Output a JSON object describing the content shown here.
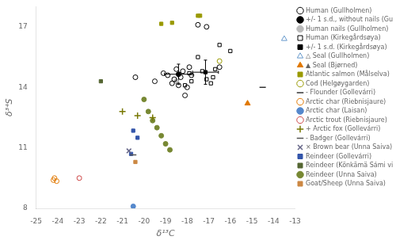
{
  "chart_data": {
    "type": "scatter",
    "xlabel": "δ¹³C",
    "ylabel": "δ³⁴S",
    "xlim": [
      -25,
      -13
    ],
    "ylim": [
      8,
      18
    ],
    "xticks": [
      -25,
      -24,
      -23,
      -22,
      -21,
      -20,
      -19,
      -18,
      -17,
      -16,
      -15,
      -14,
      -13
    ],
    "yticks": [
      8,
      11,
      14,
      17
    ],
    "grid": false,
    "legend": "right",
    "series": [
      {
        "name": "Human (Gullholmen)",
        "color": "black",
        "marker": "circle_open",
        "x": [
          -19.5,
          -19.1,
          -18.9,
          -18.7,
          -18.6,
          -18.5,
          -18.4,
          -18.3,
          -18.2,
          -18.1,
          -18.0,
          -17.9,
          -17.8,
          -17.5,
          -17.1,
          -16.5,
          -20.4
        ],
        "y": [
          14.3,
          14.7,
          14.6,
          14.2,
          14.4,
          14.9,
          14.1,
          14.5,
          14.8,
          13.6,
          14.0,
          15.0,
          14.6,
          17.1,
          17.0,
          15.0,
          14.5
        ]
      },
      {
        "name": "+/- 1 s.d., without nails (Gullholmen)",
        "color": "black",
        "marker": "circle",
        "x": [
          -18.4
        ],
        "y": [
          14.65
        ],
        "xerr": 0.65,
        "yerr": 0.5
      },
      {
        "name": "Human nails (Gullholmen)",
        "color": "#bbbbbb",
        "marker": "circle",
        "x": [
          -18.5
        ],
        "y": [
          14.3
        ]
      },
      {
        "name": "Human (Kirkegårdsøya)",
        "color": "black",
        "marker": "square_open",
        "x": [
          -17.5,
          -17.3,
          -17.1,
          -16.9,
          -16.8,
          -16.7,
          -16.5,
          -17.8,
          -17.9,
          -16.0,
          -18.1
        ],
        "y": [
          15.5,
          14.8,
          14.4,
          14.2,
          14.5,
          14.9,
          16.1,
          14.3,
          14.7,
          15.8,
          14.1
        ]
      },
      {
        "name": "+/- 1 s.d. (Kirkegårdsøya)",
        "color": "black",
        "marker": "square",
        "x": [
          -17.15
        ],
        "y": [
          14.75
        ],
        "xerr": 0.6,
        "yerr": 0.6
      },
      {
        "name": "△ Seal (Gullholmen)",
        "color": "#6699cc",
        "marker": "triangle_open",
        "x": [
          -13.5
        ],
        "y": [
          16.4
        ]
      },
      {
        "name": "▲ Seal (Bjørned)",
        "color": "#e07800",
        "marker": "triangle",
        "x": [
          -15.2
        ],
        "y": [
          13.2
        ]
      },
      {
        "name": "Atlantic salmon (Målselva)",
        "color": "#999900",
        "marker": "square",
        "x": [
          -19.2,
          -18.7,
          -17.5,
          -17.4
        ],
        "y": [
          17.15,
          17.2,
          17.55,
          17.55
        ]
      },
      {
        "name": "Cod (Helgøygarden)",
        "color": "#999900",
        "marker": "circle_open",
        "x": [
          -16.5
        ],
        "y": [
          15.3
        ]
      },
      {
        "name": "- Flounder (Gollevárri)",
        "color": "#333333",
        "marker": "hline",
        "x": [
          -14.5
        ],
        "y": [
          14.0
        ]
      },
      {
        "name": "Arctic char (Riebnisjaure)",
        "color": "#e07800",
        "marker": "circle_open",
        "x": [
          -24.05,
          -24.15,
          -24.2
        ],
        "y": [
          9.35,
          9.5,
          9.4
        ]
      },
      {
        "name": "Arctic char (Laisan)",
        "color": "#5588cc",
        "marker": "circle",
        "x": [
          -20.5
        ],
        "y": [
          8.1
        ]
      },
      {
        "name": "Arctic trout (Riebnisjaure)",
        "color": "#cc4444",
        "marker": "circle_open",
        "x": [
          -23.0
        ],
        "y": [
          9.5
        ]
      },
      {
        "name": "+ Arctic fox (Gollevárri)",
        "color": "#777700",
        "marker": "plus",
        "x": [
          -21.0,
          -20.3,
          -19.6
        ],
        "y": [
          12.8,
          12.6,
          12.5
        ]
      },
      {
        "name": "- Badger (Gollevárri)",
        "color": "#555555",
        "marker": "hline",
        "x": [
          -20.5
        ],
        "y": [
          10.65
        ]
      },
      {
        "name": "× Brown bear (Unna Saiva)",
        "color": "#666688",
        "marker": "x",
        "x": [
          -20.7
        ],
        "y": [
          10.85
        ]
      },
      {
        "name": "Reindeer (Gollevárri)",
        "color": "#3355aa",
        "marker": "square",
        "x": [
          -20.5,
          -20.3,
          -20.6
        ],
        "y": [
          11.85,
          11.5,
          10.7
        ]
      },
      {
        "name": "Reindeer (Könkämä Sámi village)",
        "color": "#556633",
        "marker": "square",
        "x": [
          -22.0
        ],
        "y": [
          14.3
        ]
      },
      {
        "name": "Reindeer (Unna Saiva)",
        "color": "#778833",
        "marker": "circle",
        "x": [
          -20.0,
          -19.8,
          -19.6,
          -19.4,
          -19.2,
          -19.0,
          -18.8
        ],
        "y": [
          13.4,
          12.8,
          12.35,
          12.0,
          11.6,
          11.2,
          10.9
        ]
      },
      {
        "name": "Goat/Sheep (Unna Saiva)",
        "color": "#cc8844",
        "marker": "square",
        "x": [
          -20.4
        ],
        "y": [
          10.3
        ]
      }
    ]
  }
}
